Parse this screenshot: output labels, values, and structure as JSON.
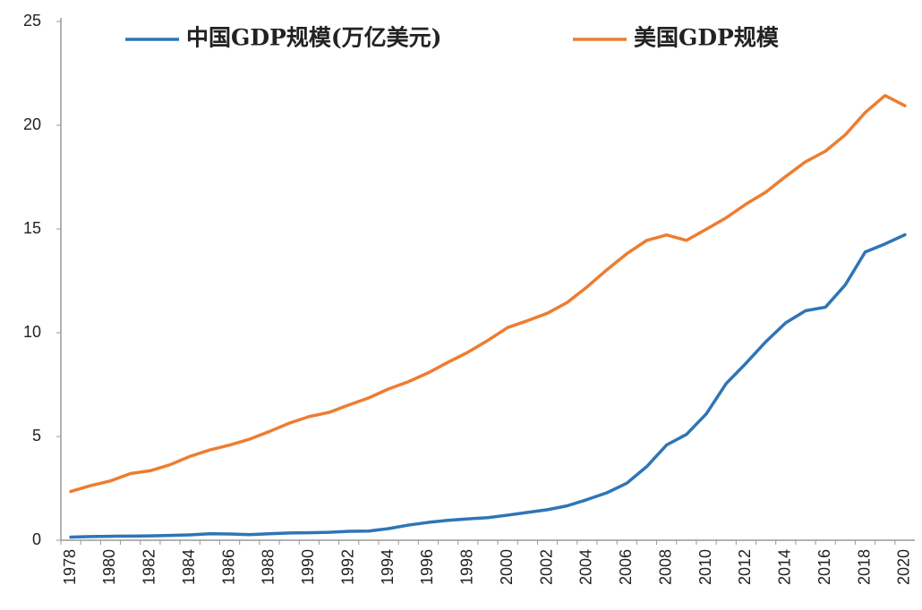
{
  "chart_data": {
    "type": "line",
    "categories": [
      "1978",
      null,
      "1980",
      null,
      "1982",
      null,
      "1984",
      null,
      "1986",
      null,
      "1988",
      null,
      "1990",
      null,
      "1992",
      null,
      "1994",
      null,
      "1996",
      null,
      "1998",
      null,
      "2000",
      null,
      "2002",
      null,
      "2004",
      null,
      "2006",
      null,
      "2008",
      null,
      "2010",
      null,
      "2012",
      null,
      "2014",
      null,
      "2016",
      null,
      "2018",
      null,
      "2020"
    ],
    "series": [
      {
        "name": "中国GDP规模(万亿美元)",
        "color": "#2e75b6",
        "values": [
          0.15,
          0.18,
          0.19,
          0.2,
          0.21,
          0.23,
          0.26,
          0.31,
          0.3,
          0.27,
          0.31,
          0.35,
          0.36,
          0.38,
          0.43,
          0.44,
          0.56,
          0.73,
          0.86,
          0.96,
          1.03,
          1.09,
          1.21,
          1.34,
          1.47,
          1.66,
          1.96,
          2.29,
          2.75,
          3.55,
          4.59,
          5.1,
          6.09,
          7.55,
          8.53,
          9.57,
          10.48,
          11.06,
          11.23,
          12.31,
          13.89,
          14.28,
          14.72
        ]
      },
      {
        "name": "美国GDP规模",
        "color": "#ed7d31",
        "values": [
          2.35,
          2.63,
          2.86,
          3.21,
          3.35,
          3.64,
          4.04,
          4.35,
          4.59,
          4.87,
          5.24,
          5.64,
          5.96,
          6.16,
          6.52,
          6.86,
          7.29,
          7.64,
          8.07,
          8.58,
          9.06,
          9.63,
          10.25,
          10.58,
          10.94,
          11.46,
          12.21,
          13.04,
          13.81,
          14.45,
          14.71,
          14.45,
          14.99,
          15.54,
          16.2,
          16.78,
          17.53,
          18.24,
          18.75,
          19.54,
          20.61,
          21.43,
          20.94
        ]
      }
    ],
    "ylim": [
      0,
      25
    ],
    "yticks": [
      0,
      5,
      10,
      15,
      20,
      25
    ],
    "grid": false,
    "legend": "top"
  }
}
